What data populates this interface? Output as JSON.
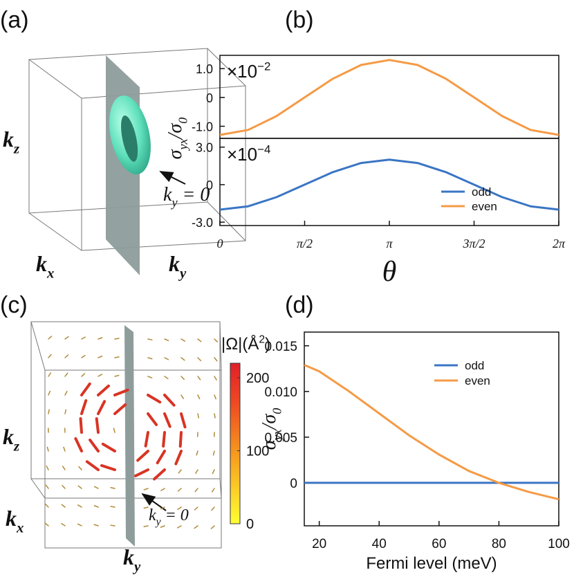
{
  "panel_labels": [
    "(a)",
    "(b)",
    "(c)",
    "(d)"
  ],
  "diagram_a": {
    "kz": [
      "k",
      "z"
    ],
    "kx": [
      "k",
      "x"
    ],
    "ky": [
      "k",
      "y"
    ],
    "annotation": [
      "k",
      "y",
      " = 0"
    ]
  },
  "diagram_c": {
    "kz": [
      "k",
      "z"
    ],
    "kx": [
      "k",
      "x"
    ],
    "ky": [
      "k",
      "y"
    ],
    "annotation": [
      "k",
      "y",
      " = 0"
    ],
    "colorbar": {
      "label": [
        "|Ω|(Å",
        "2",
        ")"
      ],
      "lim": [
        0,
        220
      ],
      "ticks": [
        0,
        100,
        200
      ]
    }
  },
  "chart_data": [
    {
      "type": "line",
      "ylabel": [
        "σ",
        "yx",
        "/σ",
        "0"
      ],
      "multiplier": [
        "×10",
        "−2"
      ],
      "xlim": [
        0,
        6.2832
      ],
      "ylim": [
        -1.42,
        1.46
      ],
      "yticks": [
        {
          "value": 1,
          "label": "1.0"
        },
        0,
        {
          "value": -1,
          "label": "-1.0"
        }
      ],
      "x": [
        0,
        0.5236,
        1.0472,
        1.5708,
        2.0944,
        2.618,
        3.1416,
        3.6652,
        4.1888,
        4.7124,
        5.236,
        5.7596,
        6.2832
      ],
      "series": [
        {
          "name": "even",
          "color": "#f59a45",
          "values": [
            -1.3,
            -1.126,
            -0.65,
            0,
            0.65,
            1.126,
            1.3,
            1.126,
            0.65,
            0,
            -0.65,
            -1.126,
            -1.3
          ]
        }
      ]
    },
    {
      "type": "line",
      "multiplier": [
        "×10",
        "−4"
      ],
      "xlabel": "θ",
      "xlim": [
        0,
        6.2832
      ],
      "ylim": [
        -3.27,
        3.7
      ],
      "yticks": [
        {
          "value": 3,
          "label": "3.0"
        },
        0,
        {
          "value": -3,
          "label": "-3.0"
        }
      ],
      "xticks": [
        0,
        {
          "value": 1.5708,
          "label": "π/2"
        },
        {
          "value": 3.1416,
          "label": "π"
        },
        {
          "value": 4.7124,
          "label": "3π/2"
        },
        {
          "value": 6.2832,
          "label": "2π"
        }
      ],
      "x": [
        0,
        0.5236,
        1.0472,
        1.5708,
        2.0944,
        2.618,
        3.1416,
        3.6652,
        4.1888,
        4.7124,
        5.236,
        5.7596,
        6.2832
      ],
      "series": [
        {
          "name": "odd",
          "color": "#3a75c4",
          "values": [
            -2,
            -1.732,
            -1,
            0,
            1,
            1.732,
            2,
            1.732,
            1,
            0,
            -1,
            -1.732,
            -2
          ]
        }
      ],
      "legend": "lower right"
    },
    {
      "type": "line",
      "ylabel": [
        "σ",
        "yx",
        "/σ",
        "0"
      ],
      "xlabel": "Fermi level (meV)",
      "xlim": [
        15,
        100
      ],
      "ylim": [
        -0.0047,
        0.0165
      ],
      "xticks": [
        20,
        40,
        60,
        80,
        100
      ],
      "yticks": [
        0,
        0.005,
        {
          "value": 0.01,
          "label": "0.010"
        },
        0.015
      ],
      "x": [
        15,
        20,
        30,
        40,
        50,
        60,
        70,
        80,
        90,
        100
      ],
      "series": [
        {
          "name": "odd",
          "color": "#3a75c4",
          "values": [
            0,
            0,
            0,
            0,
            0,
            0,
            0,
            0,
            0,
            0
          ]
        },
        {
          "name": "even",
          "color": "#f59a45",
          "values": [
            0.0129,
            0.0122,
            0.01,
            0.0076,
            0.0052,
            0.0031,
            0.0013,
            0,
            -0.001,
            -0.0018
          ]
        }
      ],
      "legend": "upper right"
    }
  ]
}
